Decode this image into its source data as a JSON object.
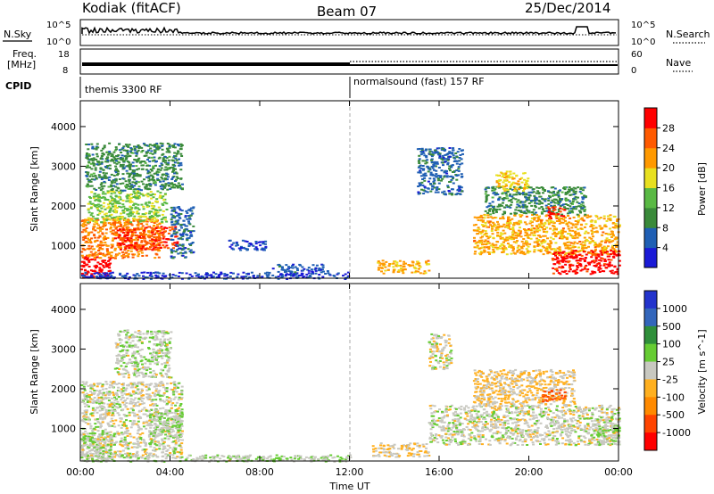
{
  "header": {
    "station": "Kodiak (fitACF)",
    "beam": "Beam 07",
    "date": "25/Dec/2014"
  },
  "top_panels": {
    "nsky": {
      "label": "N.Sky",
      "left_ticks": [
        "10^5",
        "10^0"
      ],
      "right_ticks": [
        "10^5",
        "10^0"
      ],
      "right_label": "N.Search"
    },
    "freq": {
      "label_lines": [
        "Freq.",
        "[MHz]"
      ],
      "left_ticks": [
        "18",
        "8"
      ],
      "right_ticks": [
        "60",
        "0"
      ],
      "right_label": "Nave"
    },
    "cpid": {
      "label": "CPID",
      "modes": [
        "themis 3300 RF",
        "normalsound (fast) 157 RF"
      ]
    }
  },
  "colors": {
    "power": [
      "#1a1ad6",
      "#1f5fb4",
      "#3a8a3a",
      "#59b944",
      "#e8e020",
      "#ff9900",
      "#ff5a00",
      "#ff0000"
    ],
    "velocity": [
      "#2233cc",
      "#3366bb",
      "#2f8f3a",
      "#66cc33",
      "#c8c8c0",
      "#ffb020",
      "#ff8a00",
      "#ff4400",
      "#ff0000"
    ]
  },
  "chart_data": [
    {
      "type": "heatmap",
      "title": "",
      "xlabel": "Time UT",
      "ylabel": "Slant Range [km]",
      "x_ticks": [
        "00:00",
        "04:00",
        "08:00",
        "12:00",
        "16:00",
        "20:00",
        "00:00"
      ],
      "y_ticks": [
        "1000",
        "2000",
        "3000",
        "4000"
      ],
      "xlim_hours": [
        0,
        24
      ],
      "ylim_km": [
        180,
        4650
      ],
      "colorbar": {
        "label": "Power [dB]",
        "ticks": [
          "4",
          "8",
          "12",
          "16",
          "20",
          "24",
          "28"
        ],
        "range": [
          0,
          30
        ]
      },
      "regions": [
        {
          "t0": 0.0,
          "t1": 1.3,
          "r0": 200,
          "r1": 750,
          "level": 30
        },
        {
          "t0": 0.0,
          "t1": 3.5,
          "r0": 700,
          "r1": 1700,
          "level": 22
        },
        {
          "t0": 1.5,
          "t1": 4.3,
          "r0": 900,
          "r1": 1500,
          "level": 26
        },
        {
          "t0": 0.3,
          "t1": 3.8,
          "r0": 1600,
          "r1": 2400,
          "level": 14
        },
        {
          "t0": 0.2,
          "t1": 4.5,
          "r0": 2400,
          "r1": 3600,
          "level": 9
        },
        {
          "t0": 4.0,
          "t1": 5.0,
          "r0": 700,
          "r1": 2000,
          "level": 6
        },
        {
          "t0": 0.0,
          "t1": 12.0,
          "r0": 180,
          "r1": 350,
          "level": 4
        },
        {
          "t0": 8.5,
          "t1": 11.0,
          "r0": 350,
          "r1": 550,
          "level": 5
        },
        {
          "t0": 6.5,
          "t1": 8.3,
          "r0": 900,
          "r1": 1150,
          "level": 4
        },
        {
          "t0": 13.2,
          "t1": 15.5,
          "r0": 320,
          "r1": 650,
          "level": 20
        },
        {
          "t0": 15.0,
          "t1": 17.0,
          "r0": 2300,
          "r1": 3500,
          "level": 6
        },
        {
          "t0": 17.5,
          "t1": 24.0,
          "r0": 800,
          "r1": 1800,
          "level": 20
        },
        {
          "t0": 18.0,
          "t1": 22.5,
          "r0": 1800,
          "r1": 2500,
          "level": 9
        },
        {
          "t0": 18.5,
          "t1": 20.0,
          "r0": 2400,
          "r1": 2900,
          "level": 18
        },
        {
          "t0": 21.0,
          "t1": 24.0,
          "r0": 300,
          "r1": 900,
          "level": 28
        },
        {
          "t0": 20.8,
          "t1": 21.6,
          "r0": 1700,
          "r1": 2000,
          "level": 27
        }
      ]
    },
    {
      "type": "heatmap",
      "title": "",
      "xlabel": "Time UT",
      "ylabel": "Slant Range [km]",
      "x_ticks": [
        "00:00",
        "04:00",
        "08:00",
        "12:00",
        "16:00",
        "20:00",
        "00:00"
      ],
      "y_ticks": [
        "1000",
        "2000",
        "3000",
        "4000"
      ],
      "xlim_hours": [
        0,
        24
      ],
      "ylim_km": [
        180,
        4650
      ],
      "colorbar": {
        "label": "Velocity [m s^-1]",
        "ticks": [
          "1000",
          "500",
          "100",
          "25",
          "-25",
          "-100",
          "-500",
          "-1000"
        ],
        "range": [
          -1200,
          1200
        ]
      },
      "regions": [
        {
          "t0": 0.0,
          "t1": 4.5,
          "r0": 300,
          "r1": 2200,
          "level": 0
        },
        {
          "t0": 0.0,
          "t1": 1.5,
          "r0": 200,
          "r1": 900,
          "level": 40
        },
        {
          "t0": 3.0,
          "t1": 4.5,
          "r0": 800,
          "r1": 1500,
          "level": 120
        },
        {
          "t0": 1.5,
          "t1": 4.0,
          "r0": 2300,
          "r1": 3500,
          "level": 60
        },
        {
          "t0": 0.0,
          "t1": 12.0,
          "r0": 180,
          "r1": 350,
          "level": 80
        },
        {
          "t0": 13.0,
          "t1": 15.5,
          "r0": 300,
          "r1": 650,
          "level": -150
        },
        {
          "t0": 15.5,
          "t1": 24.0,
          "r0": 600,
          "r1": 1600,
          "level": 0
        },
        {
          "t0": 17.5,
          "t1": 22.0,
          "r0": 1600,
          "r1": 2500,
          "level": -150
        },
        {
          "t0": 20.5,
          "t1": 21.6,
          "r0": 1700,
          "r1": 2000,
          "level": -700
        },
        {
          "t0": 23.0,
          "t1": 24.0,
          "r0": 600,
          "r1": 1300,
          "level": 100
        },
        {
          "t0": 15.5,
          "t1": 16.5,
          "r0": 2500,
          "r1": 3400,
          "level": 0
        }
      ]
    }
  ]
}
